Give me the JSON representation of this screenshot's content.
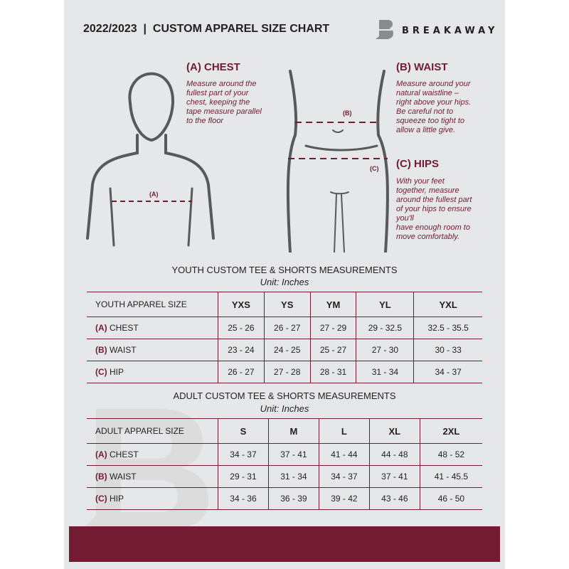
{
  "header": {
    "title": "2022/2023  |  CUSTOM APPAREL SIZE CHART",
    "brand": "BREAKAWAY"
  },
  "colors": {
    "accent": "#721c33",
    "background": "#e6e7e8",
    "text": "#231f20"
  },
  "guides": {
    "chest": {
      "heading": "(A) CHEST",
      "label": "(A)",
      "lines": [
        "Measure around the",
        "fullest part of your",
        "chest, keeping the",
        "tape measure parallel",
        "to the floor"
      ]
    },
    "waist": {
      "heading": "(B) WAIST",
      "label": "(B)",
      "lines": [
        "Measure around your",
        "natural waistline –",
        "right above your hips.",
        "Be careful not to",
        "squeeze too tight to",
        "allow a little give."
      ]
    },
    "hips": {
      "heading": "(C) HIPS",
      "label": "(C)",
      "lines": [
        "With your feet",
        "together, measure",
        "around the fullest part",
        "of your hips to ensure",
        "you'll",
        "have enough room to",
        "move comfortably."
      ]
    }
  },
  "youth": {
    "title": "YOUTH CUSTOM TEE & SHORTS MEASUREMENTS",
    "unit": "Unit: Inches",
    "header": [
      "YOUTH APPAREL SIZE",
      "YXS",
      "YS",
      "YM",
      "YL",
      "YXL"
    ],
    "rows": [
      {
        "code": "(A)",
        "name": "CHEST",
        "values": [
          "25 - 26",
          "26 - 27",
          "27 - 29",
          "29 - 32.5",
          "32.5 - 35.5"
        ]
      },
      {
        "code": "(B)",
        "name": "WAIST",
        "values": [
          "23 - 24",
          "24 - 25",
          "25 - 27",
          "27 - 30",
          "30 - 33"
        ]
      },
      {
        "code": "(C)",
        "name": "HIP",
        "values": [
          "26 - 27",
          "27 - 28",
          "28 - 31",
          "31 - 34",
          "34 - 37"
        ]
      }
    ]
  },
  "adult": {
    "title": "ADULT CUSTOM TEE & SHORTS MEASUREMENTS",
    "unit": "Unit: Inches",
    "header": [
      "ADULT APPAREL SIZE",
      "S",
      "M",
      "L",
      "XL",
      "2XL"
    ],
    "rows": [
      {
        "code": "(A)",
        "name": "CHEST",
        "values": [
          "34 - 37",
          "37 - 41",
          "41 - 44",
          "44 - 48",
          "48 - 52"
        ]
      },
      {
        "code": "(B)",
        "name": "WAIST",
        "values": [
          "29 - 31",
          "31 - 34",
          "34 - 37",
          "37 - 41",
          "41 - 45.5"
        ]
      },
      {
        "code": "(C)",
        "name": "HIP",
        "values": [
          "34 - 36",
          "36 - 39",
          "39 - 42",
          "43 - 46",
          "46 - 50"
        ]
      }
    ]
  }
}
